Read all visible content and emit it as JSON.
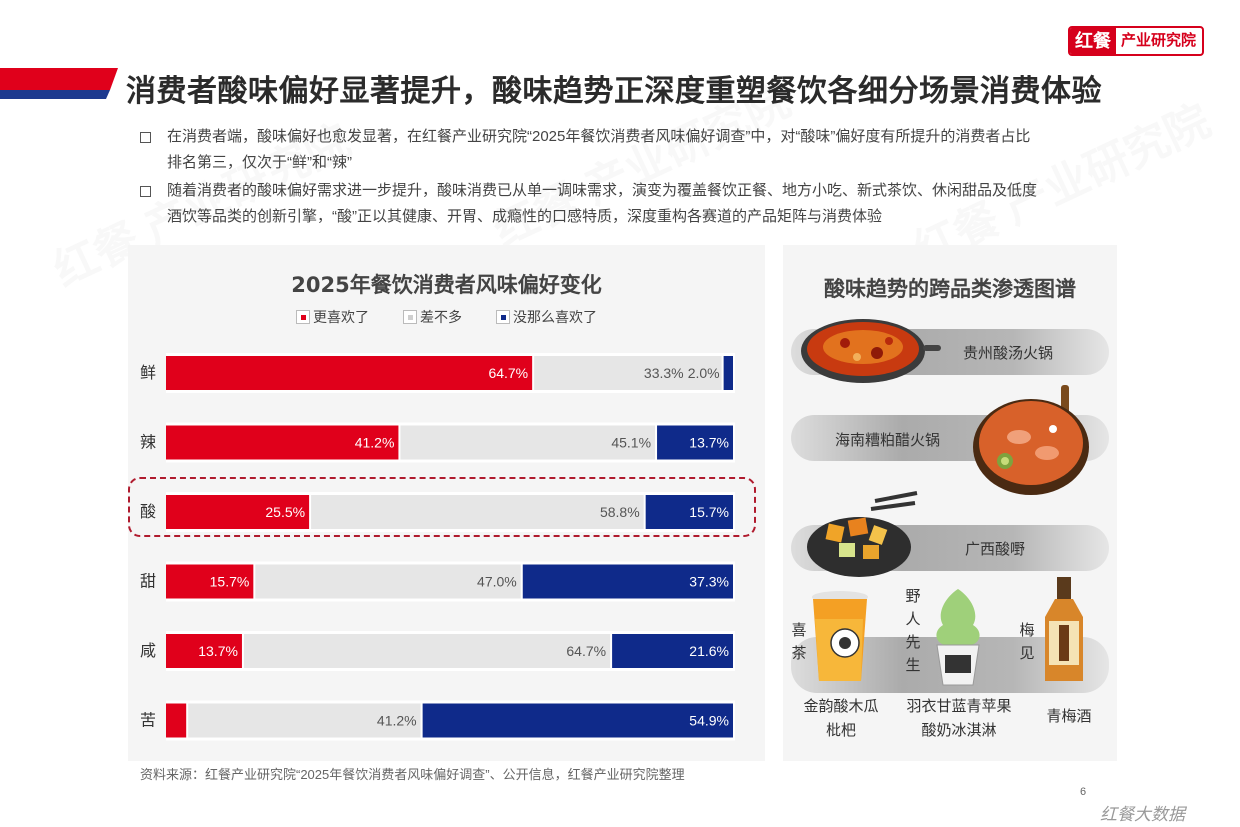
{
  "logo": {
    "mark": "红餐",
    "text": "产业研究院"
  },
  "title": "消费者酸味偏好显著提升，酸味趋势正深度重塑餐饮各细分场景消费体验",
  "bullets": [
    {
      "line1": "在消费者端，酸味偏好也愈发显著，在红餐产业研究院“2025年餐饮消费者风味偏好调查”中，对“酸味”偏好度有所提升的消费者占比",
      "line2": "排名第三，仅次于“鲜”和“辣”"
    },
    {
      "line1": "随着消费者的酸味偏好需求进一步提升，酸味消费已从单一调味需求，演变为覆盖餐饮正餐、地方小吃、新式茶饮、休闲甜品及低度",
      "line2": "酒饮等品类的创新引擎，“酸”正以其健康、开胃、成瘾性的口感特质，深度重构各赛道的产品矩阵与消费体验"
    }
  ],
  "colors": {
    "red": "#e0001b",
    "gray": "#e6e6e6",
    "navy": "#0f2a8a",
    "band_red": "#e0001b",
    "band_blue": "#1d3a8f"
  },
  "chart_data": {
    "type": "bar",
    "orientation": "horizontal",
    "stacked": true,
    "title": "2025年餐饮消费者风味偏好变化",
    "categories": [
      "鲜",
      "辣",
      "酸",
      "甜",
      "咸",
      "苦"
    ],
    "series": [
      {
        "name": "更喜欢了",
        "color": "#e0001b",
        "values": [
          64.7,
          41.2,
          25.5,
          15.7,
          13.7,
          3.9
        ],
        "labels": [
          "64.7%",
          "41.2%",
          "25.5%",
          "15.7%",
          "13.7%",
          "3.9%"
        ]
      },
      {
        "name": "差不多",
        "color": "#e6e6e6",
        "values": [
          33.3,
          45.1,
          58.8,
          47.0,
          64.7,
          41.2
        ],
        "labels": [
          "33.3%",
          "45.1%",
          "58.8%",
          "47.0%",
          "64.7%",
          "41.2%"
        ]
      },
      {
        "name": "没那么喜欢了",
        "color": "#0f2a8a",
        "values": [
          2.0,
          13.7,
          15.7,
          37.3,
          21.6,
          54.9
        ],
        "labels": [
          "2.0%",
          "13.7%",
          "15.7%",
          "37.3%",
          "21.6%",
          "54.9%"
        ]
      }
    ],
    "xlim": [
      0,
      100
    ],
    "legend": "top-center",
    "grid": false,
    "highlighted_category": "酸"
  },
  "right": {
    "title": "酸味趋势的跨品类渗透图谱",
    "items": [
      {
        "label": "贵州酸汤火锅",
        "icon": "hotpot-icon"
      },
      {
        "label": "海南糟粕醋火锅",
        "icon": "seafood-hotpot-icon"
      },
      {
        "label": "广西酸嘢",
        "icon": "pickled-fruit-icon"
      }
    ],
    "brands": [
      {
        "vertical": "喜茶",
        "caption1": "金韵酸木瓜",
        "caption2": "枇杷"
      },
      {
        "vertical": "野人先生",
        "caption1": "羽衣甘蓝青苹果",
        "caption2": "酸奶冰淇淋"
      },
      {
        "vertical": "梅见",
        "caption1": "青梅酒",
        "caption2": ""
      }
    ]
  },
  "source": "资料来源：红餐产业研究院“2025年餐饮消费者风味偏好调查”、公开信息，红餐产业研究院整理",
  "page_number": "6",
  "watermark": "红餐大数据"
}
